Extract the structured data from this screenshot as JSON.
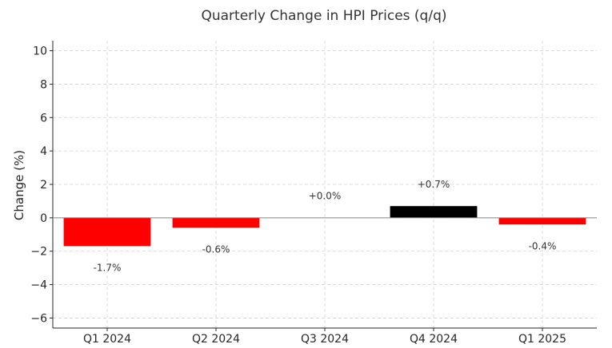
{
  "chart_data": {
    "type": "bar",
    "title": "Quarterly Change in HPI Prices (q/q)",
    "xlabel": "",
    "ylabel": "Change (%)",
    "categories": [
      "Q1 2024",
      "Q2 2024",
      "Q3 2024",
      "Q4 2024",
      "Q1 2025"
    ],
    "values": [
      -1.7,
      -0.6,
      0.0,
      0.7,
      -0.4
    ],
    "value_labels": [
      "-1.7%",
      "-0.6%",
      "+0.0%",
      "+0.7%",
      "-0.4%"
    ],
    "bar_colors": [
      "#ff0000",
      "#ff0000",
      "#000000",
      "#000000",
      "#ff0000"
    ],
    "ylim": [
      -6.6,
      10.6
    ],
    "yticks": [
      -6,
      -4,
      -2,
      0,
      2,
      4,
      6,
      8,
      10
    ],
    "ytick_labels": [
      "−6",
      "−4",
      "−2",
      "0",
      "2",
      "4",
      "6",
      "8",
      "10"
    ],
    "grid": true,
    "zero_line": true
  }
}
